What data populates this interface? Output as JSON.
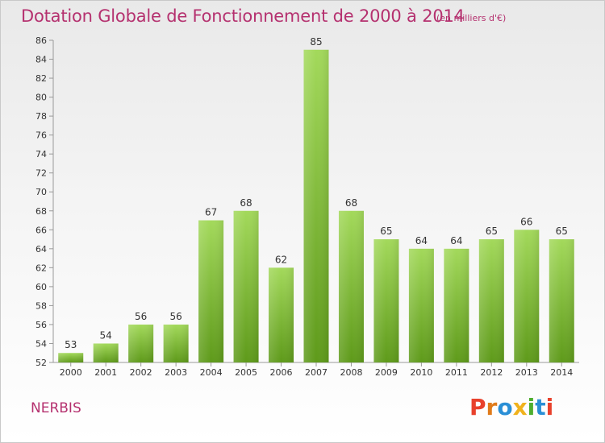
{
  "header": {
    "title": "Dotation Globale de Fonctionnement de 2000 à 2014",
    "subtitle": "(en milliers d'€)"
  },
  "footer": {
    "commune": "NERBIS",
    "logo_text": "Proxiti"
  },
  "colors": {
    "title": "#b5316f",
    "bar_light": "#a3d95b",
    "bar_dark": "#5e9a1a",
    "logo": [
      "#e8412c",
      "#e07b1b",
      "#2a8fd6",
      "#f0b21c",
      "#4eae2f",
      "#2a8fd6",
      "#e8412c"
    ]
  },
  "chart_data": {
    "type": "bar",
    "categories": [
      "2000",
      "2001",
      "2002",
      "2003",
      "2004",
      "2005",
      "2006",
      "2007",
      "2008",
      "2009",
      "2010",
      "2011",
      "2012",
      "2013",
      "2014"
    ],
    "values": [
      53,
      54,
      56,
      56,
      67,
      68,
      62,
      85,
      68,
      65,
      64,
      64,
      65,
      66,
      65
    ],
    "ylim": [
      52,
      86
    ],
    "yticks": [
      52,
      54,
      56,
      58,
      60,
      62,
      64,
      66,
      68,
      70,
      72,
      74,
      76,
      78,
      80,
      82,
      84,
      86
    ],
    "grid": false,
    "data_labels": true
  }
}
